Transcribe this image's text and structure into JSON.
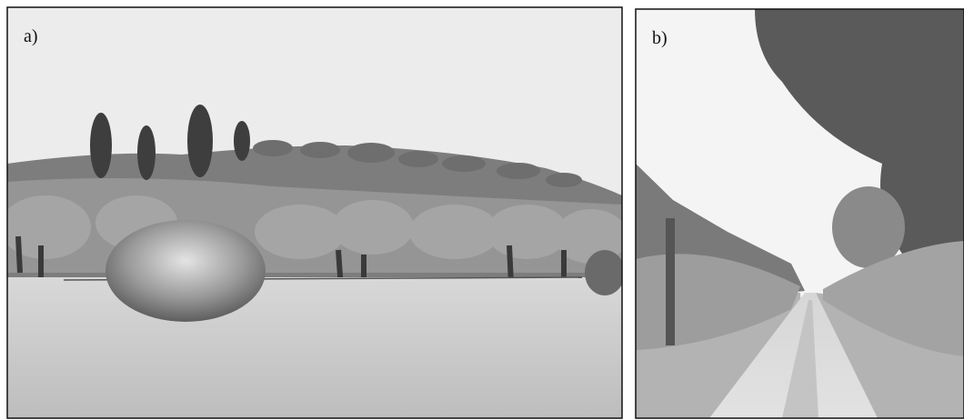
{
  "panels": [
    {
      "label": "a)"
    },
    {
      "label": "b)"
    }
  ]
}
